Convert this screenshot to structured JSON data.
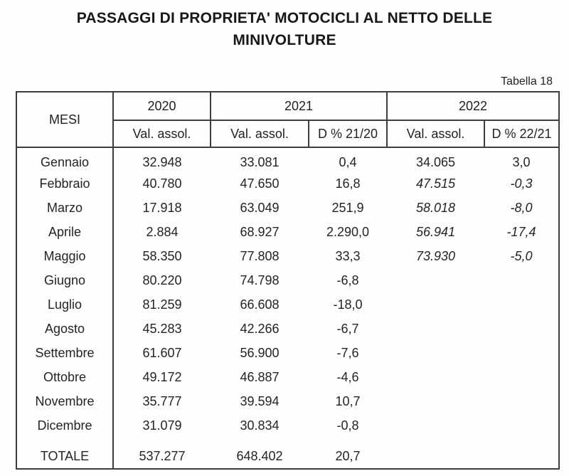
{
  "page": {
    "title": "PASSAGGI DI PROPRIETA' MOTOCICLI AL NETTO DELLE MINIVOLTURE",
    "table_label": "Tabella 18"
  },
  "table": {
    "col_month_header": "MESI",
    "year_groups": [
      {
        "year": "2020",
        "cols": [
          "Val. assol."
        ]
      },
      {
        "year": "2021",
        "cols": [
          "Val. assol.",
          "D % 21/20"
        ]
      },
      {
        "year": "2022",
        "cols": [
          "Val. assol.",
          "D % 22/21"
        ]
      }
    ],
    "rows": [
      {
        "month": "Gennaio",
        "v2020": "32.948",
        "v2021": "33.081",
        "d2120": "0,4",
        "v2022": "34.065",
        "d2221": "3,0",
        "italic2022": false
      },
      {
        "month": "Febbraio",
        "v2020": "40.780",
        "v2021": "47.650",
        "d2120": "16,8",
        "v2022": "47.515",
        "d2221": "-0,3",
        "italic2022": true
      },
      {
        "month": "Marzo",
        "v2020": "17.918",
        "v2021": "63.049",
        "d2120": "251,9",
        "v2022": "58.018",
        "d2221": "-8,0",
        "italic2022": true
      },
      {
        "month": "Aprile",
        "v2020": "2.884",
        "v2021": "68.927",
        "d2120": "2.290,0",
        "v2022": "56.941",
        "d2221": "-17,4",
        "italic2022": true
      },
      {
        "month": "Maggio",
        "v2020": "58.350",
        "v2021": "77.808",
        "d2120": "33,3",
        "v2022": "73.930",
        "d2221": "-5,0",
        "italic2022": true
      },
      {
        "month": "Giugno",
        "v2020": "80.220",
        "v2021": "74.798",
        "d2120": "-6,8",
        "v2022": "",
        "d2221": "",
        "italic2022": false
      },
      {
        "month": "Luglio",
        "v2020": "81.259",
        "v2021": "66.608",
        "d2120": "-18,0",
        "v2022": "",
        "d2221": "",
        "italic2022": false
      },
      {
        "month": "Agosto",
        "v2020": "45.283",
        "v2021": "42.266",
        "d2120": "-6,7",
        "v2022": "",
        "d2221": "",
        "italic2022": false
      },
      {
        "month": "Settembre",
        "v2020": "61.607",
        "v2021": "56.900",
        "d2120": "-7,6",
        "v2022": "",
        "d2221": "",
        "italic2022": false
      },
      {
        "month": "Ottobre",
        "v2020": "49.172",
        "v2021": "46.887",
        "d2120": "-4,6",
        "v2022": "",
        "d2221": "",
        "italic2022": false
      },
      {
        "month": "Novembre",
        "v2020": "35.777",
        "v2021": "39.594",
        "d2120": "10,7",
        "v2022": "",
        "d2221": "",
        "italic2022": false
      },
      {
        "month": "Dicembre",
        "v2020": "31.079",
        "v2021": "30.834",
        "d2120": "-0,8",
        "v2022": "",
        "d2221": "",
        "italic2022": false
      }
    ],
    "total_row": {
      "month": "TOTALE",
      "v2020": "537.277",
      "v2021": "648.402",
      "d2120": "20,7",
      "v2022": "",
      "d2221": "",
      "italic2022": false
    }
  }
}
